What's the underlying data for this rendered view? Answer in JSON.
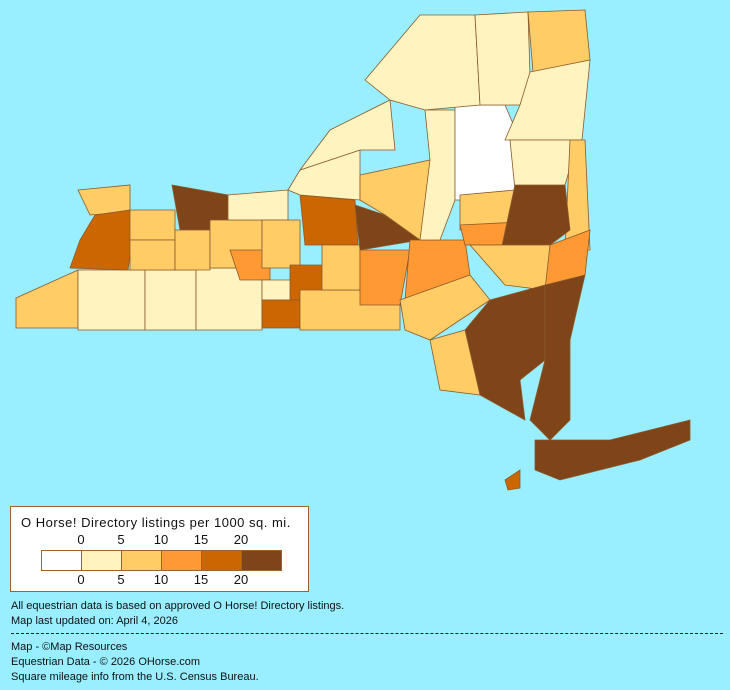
{
  "legend": {
    "title": "O Horse! Directory listings per 1000 sq. mi.",
    "top_ticks": [
      "0",
      "5",
      "10",
      "15",
      "20"
    ],
    "bottom_ticks": [
      "0",
      "5",
      "10",
      "15",
      "20"
    ],
    "colors": [
      "#FFFFFF",
      "#FFF4C0",
      "#FFCC66",
      "#FF9933",
      "#CC6600",
      "#7F4418"
    ]
  },
  "background_color": "#99EEFF",
  "notes": {
    "line1": "All equestrian data is based on approved O Horse! Directory listings.",
    "line2": "Map last updated on: April 4, 2026"
  },
  "credits": {
    "map": "Map - ©Map Resources",
    "data": "Equestrian Data - © 2026 OHorse.com",
    "census": "Square mileage info from the U.S. Census Bureau."
  }
}
